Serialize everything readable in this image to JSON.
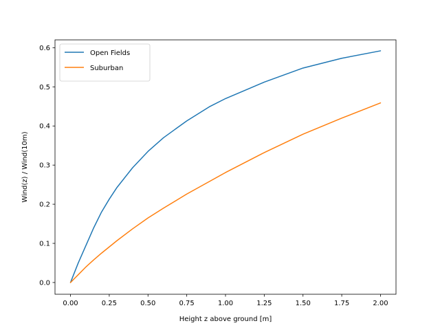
{
  "chart_data": {
    "type": "line",
    "title": "",
    "xlabel": "Height z above ground [m]",
    "ylabel": "Wind(z) / Wind(10m)",
    "xlim": [
      -0.1,
      2.1
    ],
    "ylim": [
      -0.03,
      0.62
    ],
    "xticks": [
      0.0,
      0.25,
      0.5,
      0.75,
      1.0,
      1.25,
      1.5,
      1.75,
      2.0
    ],
    "xtick_labels": [
      "0.00",
      "0.25",
      "0.50",
      "0.75",
      "1.00",
      "1.25",
      "1.50",
      "1.75",
      "2.00"
    ],
    "yticks": [
      0.0,
      0.1,
      0.2,
      0.3,
      0.4,
      0.5,
      0.6
    ],
    "ytick_labels": [
      "0.0",
      "0.1",
      "0.2",
      "0.3",
      "0.4",
      "0.5",
      "0.6"
    ],
    "grid": false,
    "legend_position": "top-left",
    "x": [
      0.0,
      0.02,
      0.05,
      0.1,
      0.15,
      0.2,
      0.25,
      0.3,
      0.4,
      0.5,
      0.6,
      0.75,
      0.9,
      1.0,
      1.25,
      1.5,
      1.75,
      2.0
    ],
    "series": [
      {
        "name": "Open Fields",
        "color": "#1f77b4",
        "values": [
          0.0,
          0.02,
          0.05,
          0.095,
          0.14,
          0.18,
          0.213,
          0.243,
          0.293,
          0.335,
          0.37,
          0.413,
          0.45,
          0.47,
          0.512,
          0.548,
          0.573,
          0.592
        ]
      },
      {
        "name": "Suburban",
        "color": "#ff7f0e",
        "values": [
          0.0,
          0.008,
          0.02,
          0.04,
          0.058,
          0.075,
          0.091,
          0.107,
          0.137,
          0.165,
          0.19,
          0.226,
          0.259,
          0.281,
          0.332,
          0.379,
          0.42,
          0.459
        ]
      }
    ]
  }
}
